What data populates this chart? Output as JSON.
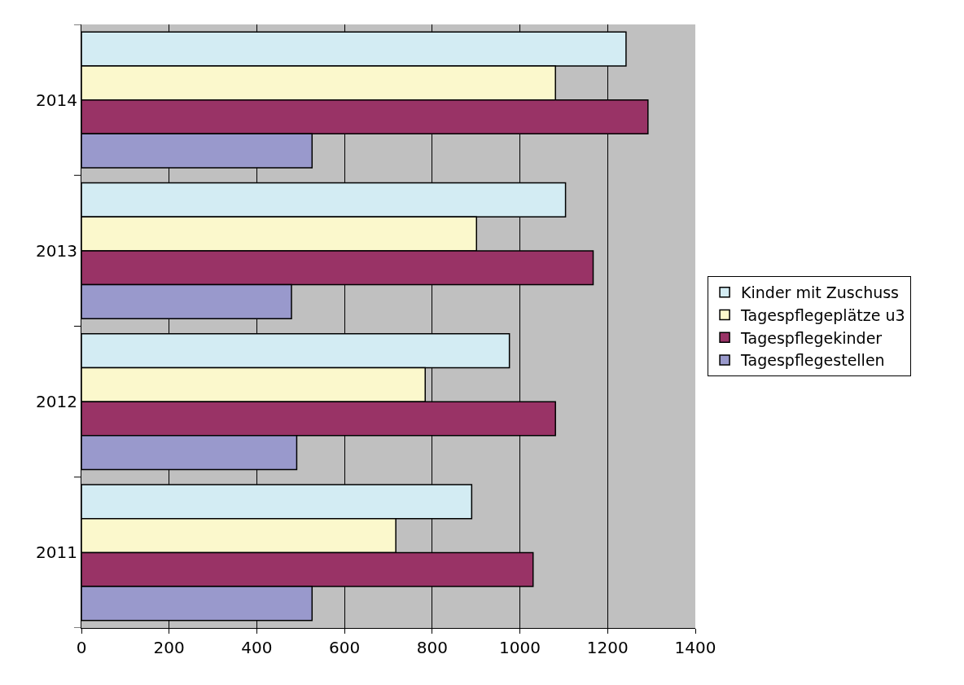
{
  "chart_data": {
    "type": "bar",
    "orientation": "horizontal",
    "categories": [
      "2014",
      "2013",
      "2012",
      "2011"
    ],
    "series": [
      {
        "name": "Kinder mit Zuschuss",
        "color": "#d3ecf3",
        "values": [
          1242,
          1104,
          976,
          890
        ]
      },
      {
        "name": "Tagespflegeplätze u3",
        "color": "#fbf8cc",
        "values": [
          1081,
          901,
          784,
          717
        ]
      },
      {
        "name": "Tagespflegekinder",
        "color": "#993366",
        "values": [
          1292,
          1167,
          1081,
          1030
        ]
      },
      {
        "name": "Tagespflegestellen",
        "color": "#9999cc",
        "values": [
          526,
          479,
          491,
          526
        ]
      }
    ],
    "xlim": [
      0,
      1400
    ],
    "xticks": [
      0,
      200,
      400,
      600,
      800,
      1000,
      1200,
      1400
    ],
    "grid": "x",
    "legend": "right"
  }
}
